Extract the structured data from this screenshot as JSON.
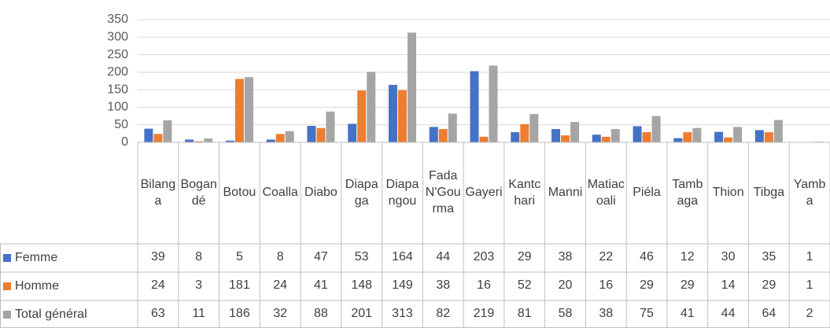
{
  "chart_data": {
    "type": "bar",
    "categories": [
      "Bilanga",
      "Bogandé",
      "Botou",
      "Coalla",
      "Diabo",
      "Diapaga",
      "Diapangou",
      "Fada N'Gourma",
      "Gayeri",
      "Kantchari",
      "Manni",
      "Matiacoali",
      "Piéla",
      "Tambaga",
      "Thion",
      "Tibga",
      "Yamba"
    ],
    "series": [
      {
        "name": "Femme",
        "color": "#4472c4",
        "values": [
          39,
          8,
          5,
          8,
          47,
          53,
          164,
          44,
          203,
          29,
          38,
          22,
          46,
          12,
          30,
          35,
          1
        ]
      },
      {
        "name": "Homme",
        "color": "#ed7d31",
        "values": [
          24,
          3,
          181,
          24,
          41,
          148,
          149,
          38,
          16,
          52,
          20,
          16,
          29,
          29,
          14,
          29,
          1
        ]
      },
      {
        "name": "Total général",
        "color": "#a5a5a5",
        "values": [
          63,
          11,
          186,
          32,
          88,
          201,
          313,
          82,
          219,
          81,
          58,
          38,
          75,
          41,
          44,
          64,
          2
        ]
      }
    ],
    "ylim": [
      0,
      350
    ],
    "yticks": [
      0,
      50,
      100,
      150,
      200,
      250,
      300,
      350
    ],
    "grid": true
  }
}
